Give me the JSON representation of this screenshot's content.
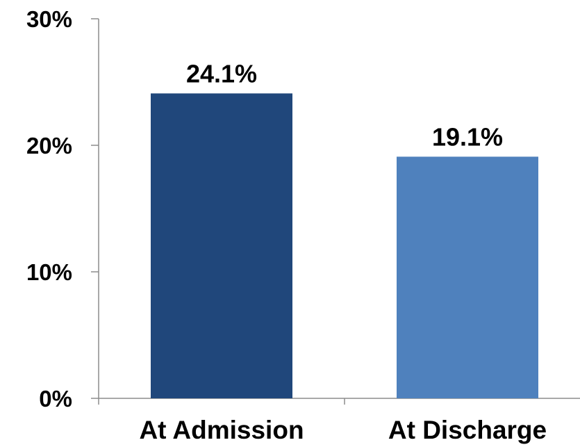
{
  "chart_data": {
    "type": "bar",
    "categories": [
      "At Admission",
      "At Discharge"
    ],
    "values": [
      24.1,
      19.1
    ],
    "data_labels": [
      "24.1%",
      "19.1%"
    ],
    "bar_colors": [
      "#20477b",
      "#4f81bd"
    ],
    "ylim": [
      0,
      30
    ],
    "yticks": [
      0,
      10,
      20,
      30
    ],
    "ytick_labels": [
      "0%",
      "10%",
      "20%",
      "30%"
    ],
    "grid": false,
    "title": "",
    "xlabel": "",
    "ylabel": ""
  }
}
